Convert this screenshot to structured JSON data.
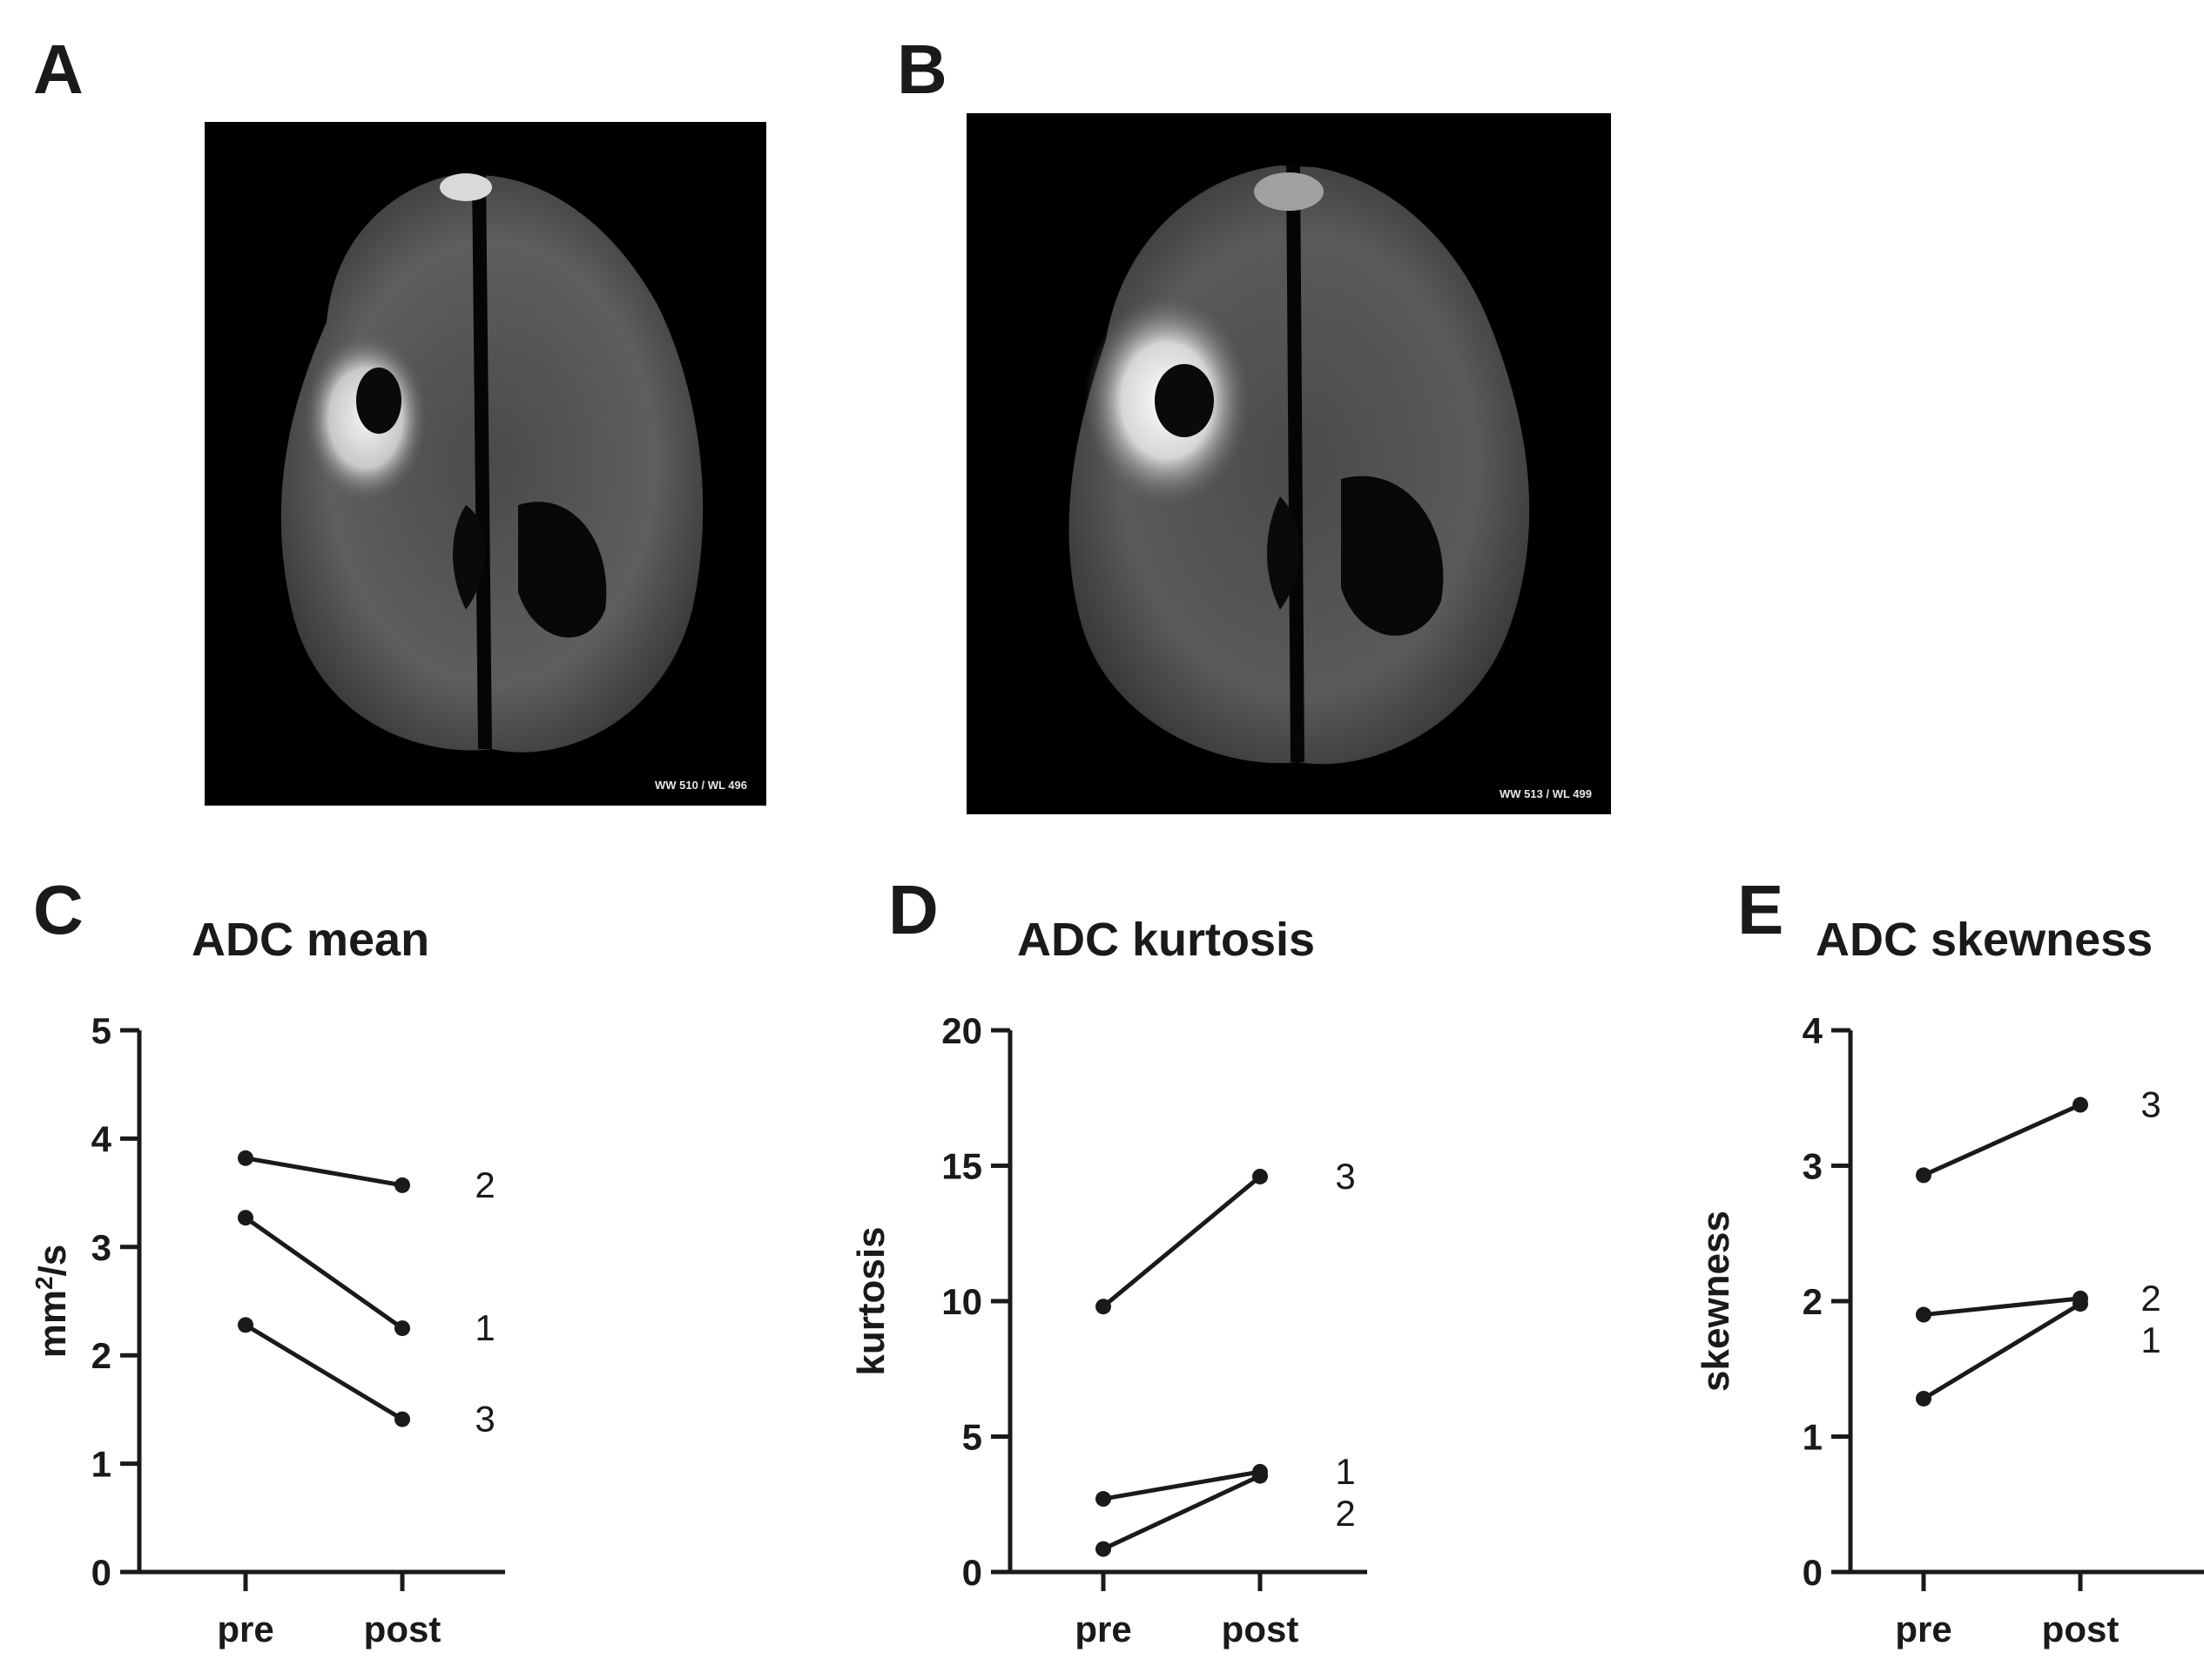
{
  "panels": {
    "A": {
      "letter": "A",
      "overlay": "WW 510 / WL 496"
    },
    "B": {
      "letter": "B",
      "overlay": "WW 513 / WL 499"
    },
    "C": {
      "letter": "C"
    },
    "D": {
      "letter": "D"
    },
    "E": {
      "letter": "E"
    }
  },
  "chart_data": [
    {
      "id": "C",
      "type": "line",
      "title": "ADC mean",
      "ylabel": "mm²/s",
      "ylabel_base": "mm",
      "ylabel_sup": "2",
      "ylabel_tail": "/s",
      "categories": [
        "pre",
        "post"
      ],
      "ylim": [
        0,
        5
      ],
      "yticks": [
        0,
        1,
        2,
        3,
        4,
        5
      ],
      "grid": false,
      "series": [
        {
          "name": "1",
          "values": [
            3.27,
            2.25
          ]
        },
        {
          "name": "2",
          "values": [
            3.82,
            3.57
          ]
        },
        {
          "name": "3",
          "values": [
            2.28,
            1.41
          ]
        }
      ]
    },
    {
      "id": "D",
      "type": "line",
      "title": "ADC kurtosis",
      "ylabel": "kurtosis",
      "categories": [
        "pre",
        "post"
      ],
      "ylim": [
        0,
        20
      ],
      "yticks": [
        0,
        5,
        10,
        15,
        20
      ],
      "grid": false,
      "series": [
        {
          "name": "1",
          "values": [
            2.7,
            3.7
          ]
        },
        {
          "name": "2",
          "values": [
            0.85,
            3.55
          ]
        },
        {
          "name": "3",
          "values": [
            9.8,
            14.6
          ]
        }
      ]
    },
    {
      "id": "E",
      "type": "line",
      "title": "ADC skewness",
      "ylabel": "skewness",
      "categories": [
        "pre",
        "post"
      ],
      "ylim": [
        0,
        4
      ],
      "yticks": [
        0,
        1,
        2,
        3,
        4
      ],
      "grid": false,
      "series": [
        {
          "name": "1",
          "values": [
            1.28,
            1.98
          ]
        },
        {
          "name": "2",
          "values": [
            1.9,
            2.02
          ]
        },
        {
          "name": "3",
          "values": [
            2.93,
            3.45
          ]
        }
      ]
    }
  ]
}
